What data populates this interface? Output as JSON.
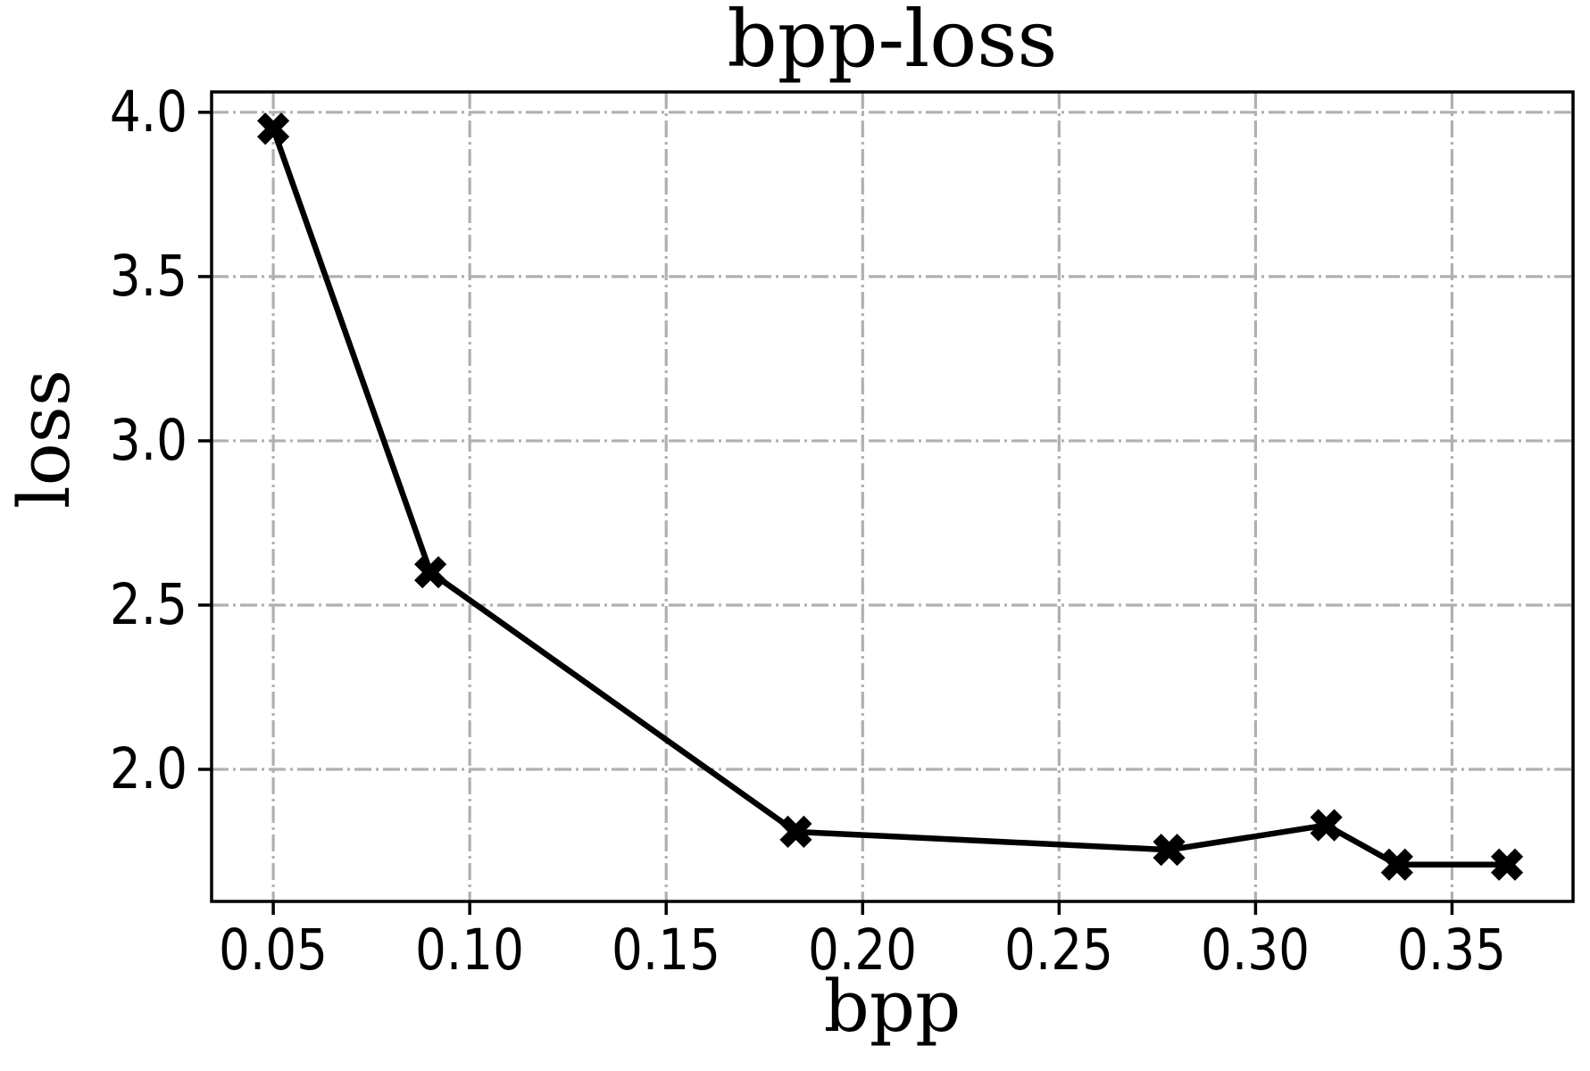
{
  "chart_data": {
    "type": "line",
    "title": "bpp-loss",
    "xlabel": "bpp",
    "ylabel": "loss",
    "x": [
      0.05,
      0.09,
      0.183,
      0.278,
      0.318,
      0.336,
      0.364
    ],
    "y": [
      3.95,
      2.6,
      1.81,
      1.755,
      1.83,
      1.71,
      1.71
    ],
    "series_name": "bpp-loss",
    "xlim": [
      0.0343,
      0.3808
    ],
    "ylim": [
      1.598,
      4.062
    ],
    "xticks": [
      0.05,
      0.1,
      0.15,
      0.2,
      0.25,
      0.3,
      0.35
    ],
    "yticks": [
      2.0,
      2.5,
      3.0,
      3.5,
      4.0
    ],
    "x_tick_decimals": 2,
    "y_tick_decimals": 1,
    "grid": true,
    "grid_linestyle": "dash-dot",
    "legend": "none",
    "marker": "X",
    "colors": {
      "line": "#000000",
      "marker": "#000000",
      "grid": "#b0b0b0",
      "spine": "#000000",
      "text": "#000000",
      "background": "#ffffff"
    }
  },
  "layout_labels": {
    "title": "bpp-loss",
    "xlabel": "bpp",
    "ylabel": "loss"
  }
}
